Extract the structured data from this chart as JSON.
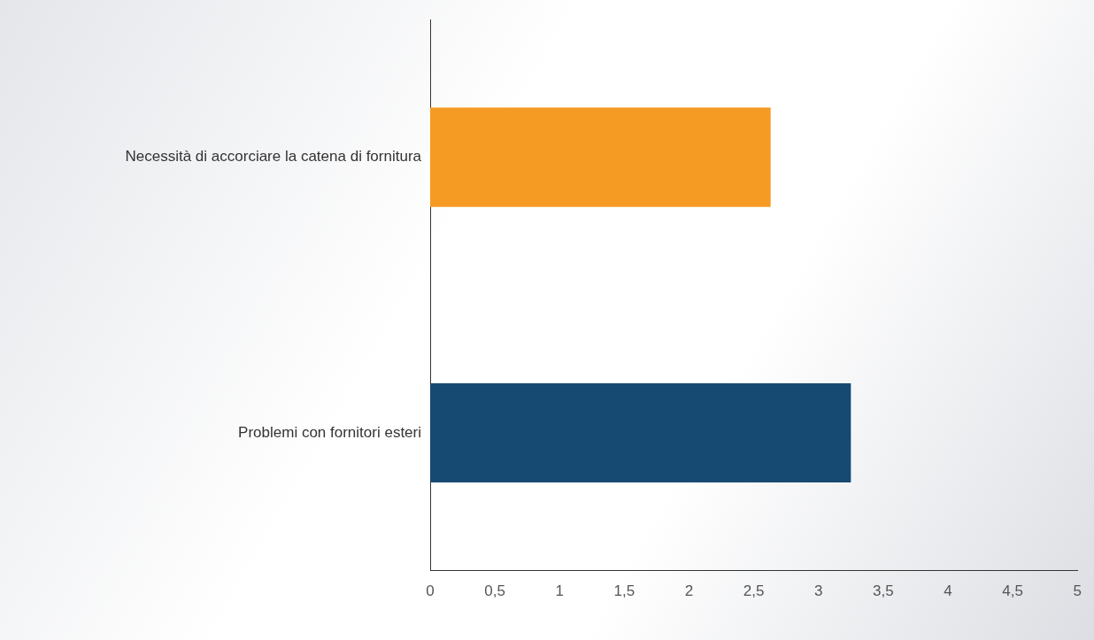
{
  "chart_data": {
    "type": "bar",
    "orientation": "horizontal",
    "categories": [
      "Necessità di accorciare la catena di fornitura",
      "Problemi con fornitori esteri"
    ],
    "colors": [
      "#f59a23",
      "#174a72"
    ],
    "values": [
      2.63,
      3.25
    ],
    "xlim": [
      0,
      5
    ],
    "xticks": [
      0,
      {
        "value": 0.5,
        "label": "0,5"
      },
      1,
      {
        "value": 1.5,
        "label": "1,5"
      },
      2,
      {
        "value": 2.5,
        "label": "2,5"
      },
      3,
      {
        "value": 3.5,
        "label": "3,5"
      },
      4,
      {
        "value": 4.5,
        "label": "4,5"
      },
      5
    ],
    "grid": false,
    "legend": false
  }
}
